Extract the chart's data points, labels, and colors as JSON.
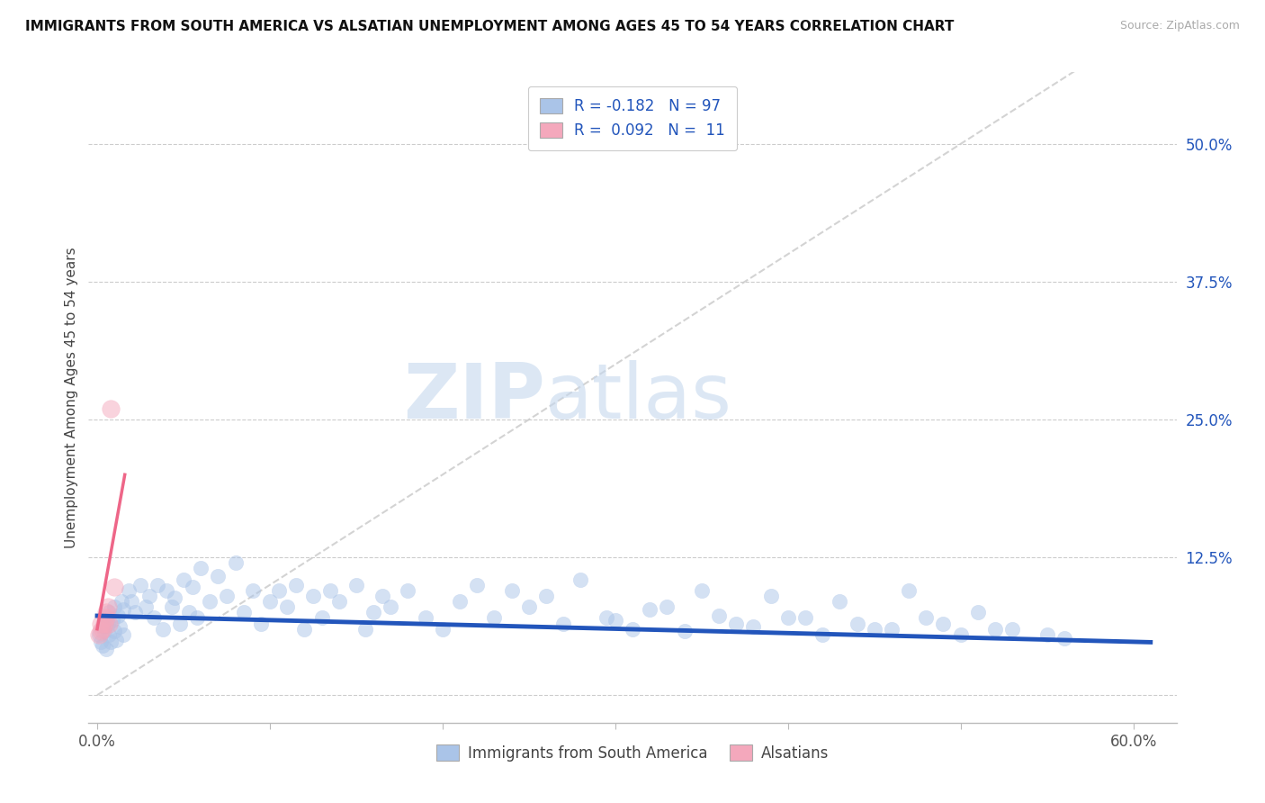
{
  "title": "IMMIGRANTS FROM SOUTH AMERICA VS ALSATIAN UNEMPLOYMENT AMONG AGES 45 TO 54 YEARS CORRELATION CHART",
  "source": "Source: ZipAtlas.com",
  "ylabel": "Unemployment Among Ages 45 to 54 years",
  "xlim": [
    -0.005,
    0.625
  ],
  "ylim": [
    -0.025,
    0.565
  ],
  "xtick_pos": [
    0.0,
    0.1,
    0.2,
    0.3,
    0.4,
    0.5,
    0.6
  ],
  "xticklabels": [
    "0.0%",
    "",
    "",
    "",
    "",
    "",
    "60.0%"
  ],
  "ytick_positions": [
    0.0,
    0.125,
    0.25,
    0.375,
    0.5
  ],
  "ytick_labels": [
    "",
    "12.5%",
    "25.0%",
    "37.5%",
    "50.0%"
  ],
  "grid_color": "#cccccc",
  "bg_color": "#ffffff",
  "blue_color": "#aac4e8",
  "pink_color": "#f4a8bc",
  "trend_blue_color": "#2255bb",
  "trend_pink_color": "#ee6688",
  "accent_blue": "#2255bb",
  "diag_color": "#cccccc",
  "legend_r_blue": "-0.182",
  "legend_n_blue": "97",
  "legend_r_pink": "0.092",
  "legend_n_pink": "11",
  "watermark_zip": "ZIP",
  "watermark_atlas": "atlas",
  "blue_x": [
    0.001,
    0.002,
    0.003,
    0.003,
    0.004,
    0.005,
    0.005,
    0.006,
    0.007,
    0.007,
    0.008,
    0.009,
    0.01,
    0.01,
    0.011,
    0.012,
    0.013,
    0.014,
    0.015,
    0.015,
    0.018,
    0.02,
    0.022,
    0.025,
    0.028,
    0.03,
    0.033,
    0.035,
    0.038,
    0.04,
    0.043,
    0.045,
    0.048,
    0.05,
    0.053,
    0.055,
    0.058,
    0.06,
    0.065,
    0.07,
    0.075,
    0.08,
    0.085,
    0.09,
    0.095,
    0.1,
    0.105,
    0.11,
    0.115,
    0.12,
    0.125,
    0.13,
    0.135,
    0.14,
    0.15,
    0.155,
    0.16,
    0.165,
    0.17,
    0.18,
    0.19,
    0.2,
    0.21,
    0.22,
    0.23,
    0.24,
    0.25,
    0.26,
    0.27,
    0.28,
    0.295,
    0.31,
    0.33,
    0.35,
    0.37,
    0.39,
    0.41,
    0.43,
    0.45,
    0.47,
    0.49,
    0.51,
    0.53,
    0.55,
    0.3,
    0.32,
    0.34,
    0.36,
    0.38,
    0.4,
    0.42,
    0.44,
    0.46,
    0.48,
    0.5,
    0.52,
    0.56
  ],
  "blue_y": [
    0.055,
    0.048,
    0.062,
    0.045,
    0.058,
    0.07,
    0.042,
    0.065,
    0.055,
    0.075,
    0.048,
    0.068,
    0.058,
    0.08,
    0.05,
    0.072,
    0.062,
    0.085,
    0.055,
    0.078,
    0.095,
    0.085,
    0.075,
    0.1,
    0.08,
    0.09,
    0.07,
    0.1,
    0.06,
    0.095,
    0.08,
    0.088,
    0.065,
    0.105,
    0.075,
    0.098,
    0.07,
    0.115,
    0.085,
    0.108,
    0.09,
    0.12,
    0.075,
    0.095,
    0.065,
    0.085,
    0.095,
    0.08,
    0.1,
    0.06,
    0.09,
    0.07,
    0.095,
    0.085,
    0.1,
    0.06,
    0.075,
    0.09,
    0.08,
    0.095,
    0.07,
    0.06,
    0.085,
    0.1,
    0.07,
    0.095,
    0.08,
    0.09,
    0.065,
    0.105,
    0.07,
    0.06,
    0.08,
    0.095,
    0.065,
    0.09,
    0.07,
    0.085,
    0.06,
    0.095,
    0.065,
    0.075,
    0.06,
    0.055,
    0.068,
    0.078,
    0.058,
    0.072,
    0.062,
    0.07,
    0.055,
    0.065,
    0.06,
    0.07,
    0.055,
    0.06,
    0.052
  ],
  "pink_x": [
    0.001,
    0.002,
    0.002,
    0.003,
    0.004,
    0.005,
    0.005,
    0.006,
    0.007,
    0.008,
    0.01
  ],
  "pink_y": [
    0.055,
    0.058,
    0.065,
    0.06,
    0.065,
    0.07,
    0.075,
    0.08,
    0.065,
    0.26,
    0.098
  ],
  "blue_trend_x": [
    0.0,
    0.61
  ],
  "blue_trend_y": [
    0.072,
    0.048
  ],
  "pink_trend_x": [
    0.0,
    0.016
  ],
  "pink_trend_y": [
    0.06,
    0.2
  ]
}
